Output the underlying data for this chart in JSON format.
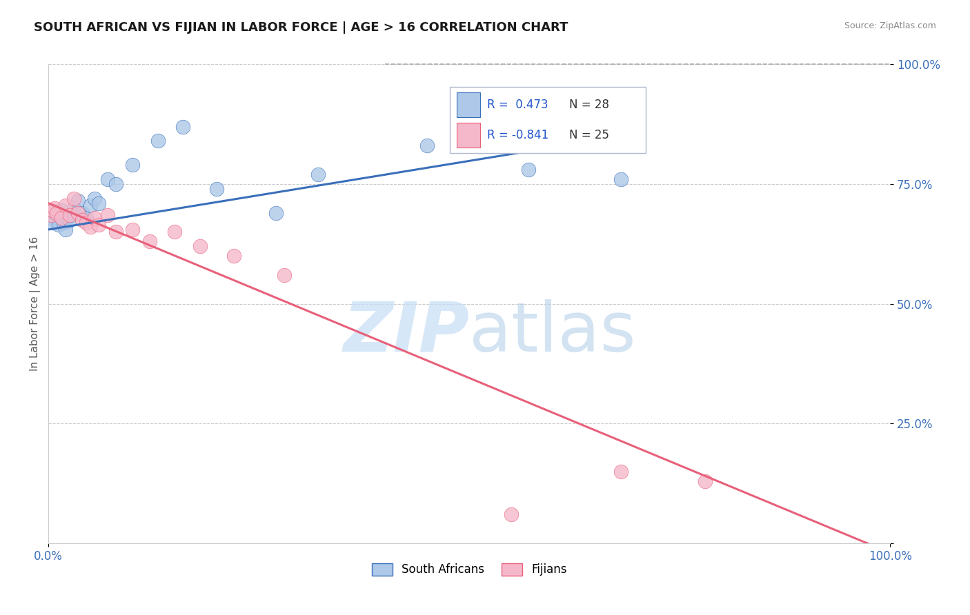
{
  "title": "SOUTH AFRICAN VS FIJIAN IN LABOR FORCE | AGE > 16 CORRELATION CHART",
  "source_text": "Source: ZipAtlas.com",
  "ylabel": "In Labor Force | Age > 16",
  "xlabel": "",
  "blue_R": 0.473,
  "blue_N": 28,
  "pink_R": -0.841,
  "pink_N": 25,
  "blue_color": "#adc8e8",
  "pink_color": "#f5b8ca",
  "blue_line_color": "#3a6fba",
  "pink_line_color": "#e8607a",
  "blue_scatter_x": [
    0.3,
    0.5,
    0.7,
    1.0,
    1.2,
    1.5,
    1.8,
    2.0,
    2.3,
    2.5,
    3.0,
    3.5,
    4.0,
    4.5,
    5.0,
    5.5,
    6.0,
    7.0,
    8.0,
    10.0,
    13.0,
    16.0,
    20.0,
    27.0,
    32.0,
    45.0,
    57.0,
    68.0
  ],
  "blue_scatter_y": [
    68.0,
    67.0,
    69.0,
    68.5,
    66.5,
    69.5,
    67.0,
    65.5,
    68.0,
    67.5,
    70.0,
    71.5,
    69.0,
    68.0,
    70.5,
    72.0,
    71.0,
    76.0,
    75.0,
    79.0,
    84.0,
    87.0,
    74.0,
    69.0,
    77.0,
    83.0,
    78.0,
    76.0
  ],
  "pink_scatter_x": [
    0.3,
    0.5,
    0.7,
    1.0,
    1.5,
    2.0,
    2.5,
    3.0,
    3.5,
    4.0,
    4.5,
    5.0,
    5.5,
    6.0,
    7.0,
    8.0,
    10.0,
    12.0,
    15.0,
    18.0,
    22.0,
    28.0,
    55.0,
    68.0,
    78.0
  ],
  "pink_scatter_y": [
    68.5,
    69.5,
    70.0,
    69.0,
    68.0,
    70.5,
    68.5,
    72.0,
    69.0,
    67.5,
    67.0,
    66.0,
    68.0,
    66.5,
    68.5,
    65.0,
    65.5,
    63.0,
    65.0,
    62.0,
    60.0,
    56.0,
    6.0,
    15.0,
    13.0
  ],
  "blue_trend_x0": 0.0,
  "blue_trend_y0": 65.5,
  "blue_trend_x1": 68.0,
  "blue_trend_y1": 85.0,
  "pink_trend_x0": 0.0,
  "pink_trend_y0": 71.0,
  "pink_trend_x1": 100.0,
  "pink_trend_y1": -2.0,
  "dashed_line_x0": 40.0,
  "dashed_line_y0": 100.0,
  "dashed_line_x1": 100.0,
  "dashed_line_y1": 100.0,
  "xlim": [
    0.0,
    100.0
  ],
  "ylim": [
    0.0,
    100.0
  ],
  "yticks": [
    0.0,
    25.0,
    50.0,
    75.0,
    100.0
  ],
  "ytick_labels": [
    "",
    "25.0%",
    "50.0%",
    "75.0%",
    "100.0%"
  ],
  "xtick_labels": [
    "0.0%",
    "100.0%"
  ],
  "background_color": "#ffffff",
  "grid_color": "#cccccc",
  "title_color": "#1a1a1a",
  "tick_label_color": "#3a6fba",
  "ylabel_color": "#555555",
  "legend_R_color": "#2255cc",
  "legend_N_color": "#333333",
  "watermark_zip_color": "#c5ddf5",
  "watermark_atlas_color": "#b0cce8"
}
